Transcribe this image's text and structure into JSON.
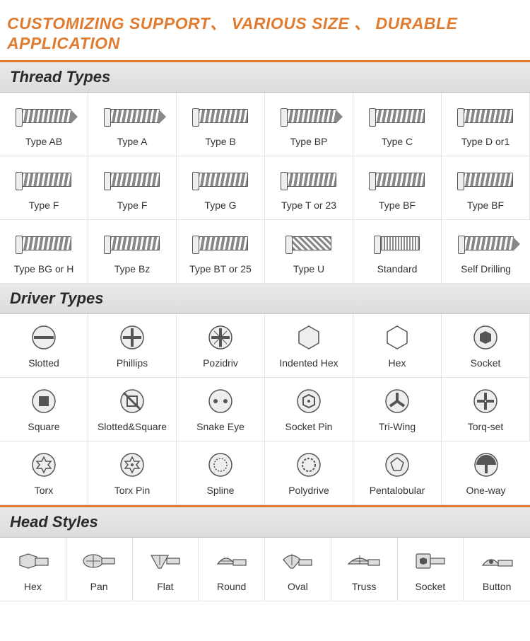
{
  "banner": {
    "text": "CUSTOMIZING SUPPORT、 VARIOUS SIZE 、 DURABLE APPLICATION",
    "color": "#e07b2f",
    "font_size": 23,
    "font_weight": 900
  },
  "sections": {
    "thread": {
      "title": "Thread Types"
    },
    "driver": {
      "title": "Driver Types"
    },
    "head": {
      "title": "Head Styles"
    }
  },
  "thread_types": {
    "columns": 6,
    "items": [
      {
        "label": "Type AB",
        "icon": "screw-ab"
      },
      {
        "label": "Type A",
        "icon": "screw-a"
      },
      {
        "label": "Type B",
        "icon": "screw-b"
      },
      {
        "label": "Type BP",
        "icon": "screw-bp"
      },
      {
        "label": "Type C",
        "icon": "screw-c"
      },
      {
        "label": "Type D or1",
        "icon": "screw-d"
      },
      {
        "label": "Type F",
        "icon": "screw-f1"
      },
      {
        "label": "Type F",
        "icon": "screw-f2"
      },
      {
        "label": "Type G",
        "icon": "screw-g"
      },
      {
        "label": "Type T or 23",
        "icon": "screw-t"
      },
      {
        "label": "Type BF",
        "icon": "screw-bf1"
      },
      {
        "label": "Type BF",
        "icon": "screw-bf2"
      },
      {
        "label": "Type BG or H",
        "icon": "screw-bg"
      },
      {
        "label": "Type Bz",
        "icon": "screw-bz"
      },
      {
        "label": "Type BT or 25",
        "icon": "screw-bt"
      },
      {
        "label": "Type U",
        "icon": "screw-u"
      },
      {
        "label": "Standard",
        "icon": "screw-std"
      },
      {
        "label": "Self Drilling",
        "icon": "screw-self"
      }
    ]
  },
  "driver_types": {
    "columns": 6,
    "items": [
      {
        "label": "Slotted",
        "icon": "drv-slotted"
      },
      {
        "label": "Phillips",
        "icon": "drv-phillips"
      },
      {
        "label": "Pozidriv",
        "icon": "drv-pozidriv"
      },
      {
        "label": "Indented Hex",
        "icon": "drv-indhex"
      },
      {
        "label": "Hex",
        "icon": "drv-hex"
      },
      {
        "label": "Socket",
        "icon": "drv-socket"
      },
      {
        "label": "Square",
        "icon": "drv-square"
      },
      {
        "label": "Slotted&Square",
        "icon": "drv-slotsquare"
      },
      {
        "label": "Snake Eye",
        "icon": "drv-snake"
      },
      {
        "label": "Socket Pin",
        "icon": "drv-socketpin"
      },
      {
        "label": "Tri-Wing",
        "icon": "drv-triwing"
      },
      {
        "label": "Torq-set",
        "icon": "drv-torqset"
      },
      {
        "label": "Torx",
        "icon": "drv-torx"
      },
      {
        "label": "Torx Pin",
        "icon": "drv-torxpin"
      },
      {
        "label": "Spline",
        "icon": "drv-spline"
      },
      {
        "label": "Polydrive",
        "icon": "drv-polydrive"
      },
      {
        "label": "Pentalobular",
        "icon": "drv-penta"
      },
      {
        "label": "One-way",
        "icon": "drv-oneway"
      }
    ]
  },
  "head_styles": {
    "columns": 8,
    "items": [
      {
        "label": "Hex",
        "icon": "head-hex"
      },
      {
        "label": "Pan",
        "icon": "head-pan"
      },
      {
        "label": "Flat",
        "icon": "head-flat"
      },
      {
        "label": "Round",
        "icon": "head-round"
      },
      {
        "label": "Oval",
        "icon": "head-oval"
      },
      {
        "label": "Truss",
        "icon": "head-truss"
      },
      {
        "label": "Socket",
        "icon": "head-socket"
      },
      {
        "label": "Button",
        "icon": "head-button"
      }
    ]
  },
  "style": {
    "header_bg_from": "#e9e9e9",
    "header_bg_to": "#dcdcdc",
    "border_color": "#e2e2e2",
    "label_font_size": 14,
    "label_color": "#333",
    "icon_circle_bg": "#eeeeee",
    "icon_stroke": "#666666"
  }
}
